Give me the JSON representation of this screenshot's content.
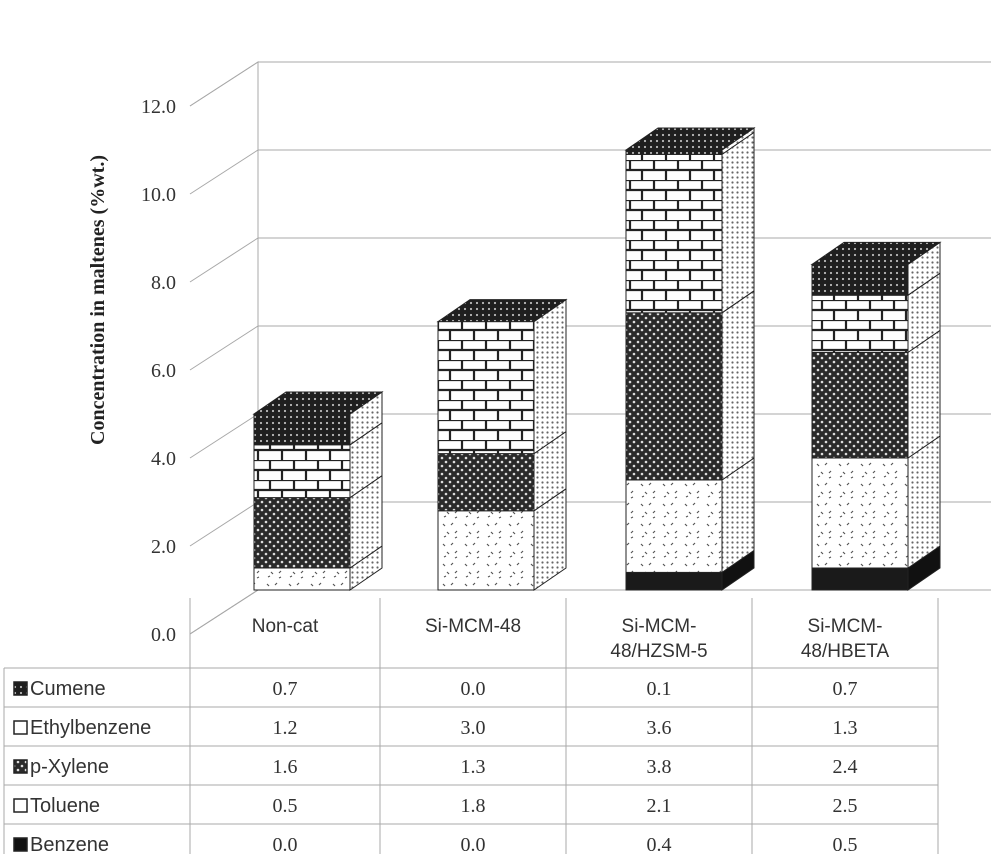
{
  "chart_data": {
    "type": "bar",
    "stacked": true,
    "three_d": true,
    "categories": [
      "Non-cat",
      "Si-MCM-48",
      "Si-MCM-48/HZSM-5",
      "Si-MCM-48/HBETA"
    ],
    "category_lines": [
      [
        "Non-cat"
      ],
      [
        "Si-MCM-48"
      ],
      [
        "Si-MCM-",
        "48/HZSM-5"
      ],
      [
        "Si-MCM-",
        "48/HBETA"
      ]
    ],
    "series": [
      {
        "name": "Benzene",
        "values": [
          0.0,
          0.0,
          0.4,
          0.5
        ],
        "pattern": "solid"
      },
      {
        "name": "Toluene",
        "values": [
          0.5,
          1.8,
          2.1,
          2.5
        ],
        "pattern": "dots"
      },
      {
        "name": "p-Xylene",
        "values": [
          1.6,
          1.3,
          3.8,
          2.4
        ],
        "pattern": "crosshatch"
      },
      {
        "name": "Ethylbenzene",
        "values": [
          1.2,
          3.0,
          3.6,
          1.3
        ],
        "pattern": "brick"
      },
      {
        "name": "Cumene",
        "values": [
          0.7,
          0.0,
          0.1,
          0.7
        ],
        "pattern": "dense"
      }
    ],
    "table_order": [
      "Cumene",
      "Ethylbenzene",
      "p-Xylene",
      "Toluene",
      "Benzene"
    ],
    "ylabel": "Concentration in maltenes (%wt.)",
    "ylim": [
      0,
      12
    ],
    "yticks": [
      "0.0",
      "2.0",
      "4.0",
      "6.0",
      "8.0",
      "10.0",
      "12.0"
    ],
    "grid": true,
    "data_table": true,
    "colors": {
      "solid": "#1a1a1a",
      "face": "#ffffff",
      "line": "#222222",
      "grid": "#9a9a9a"
    }
  }
}
